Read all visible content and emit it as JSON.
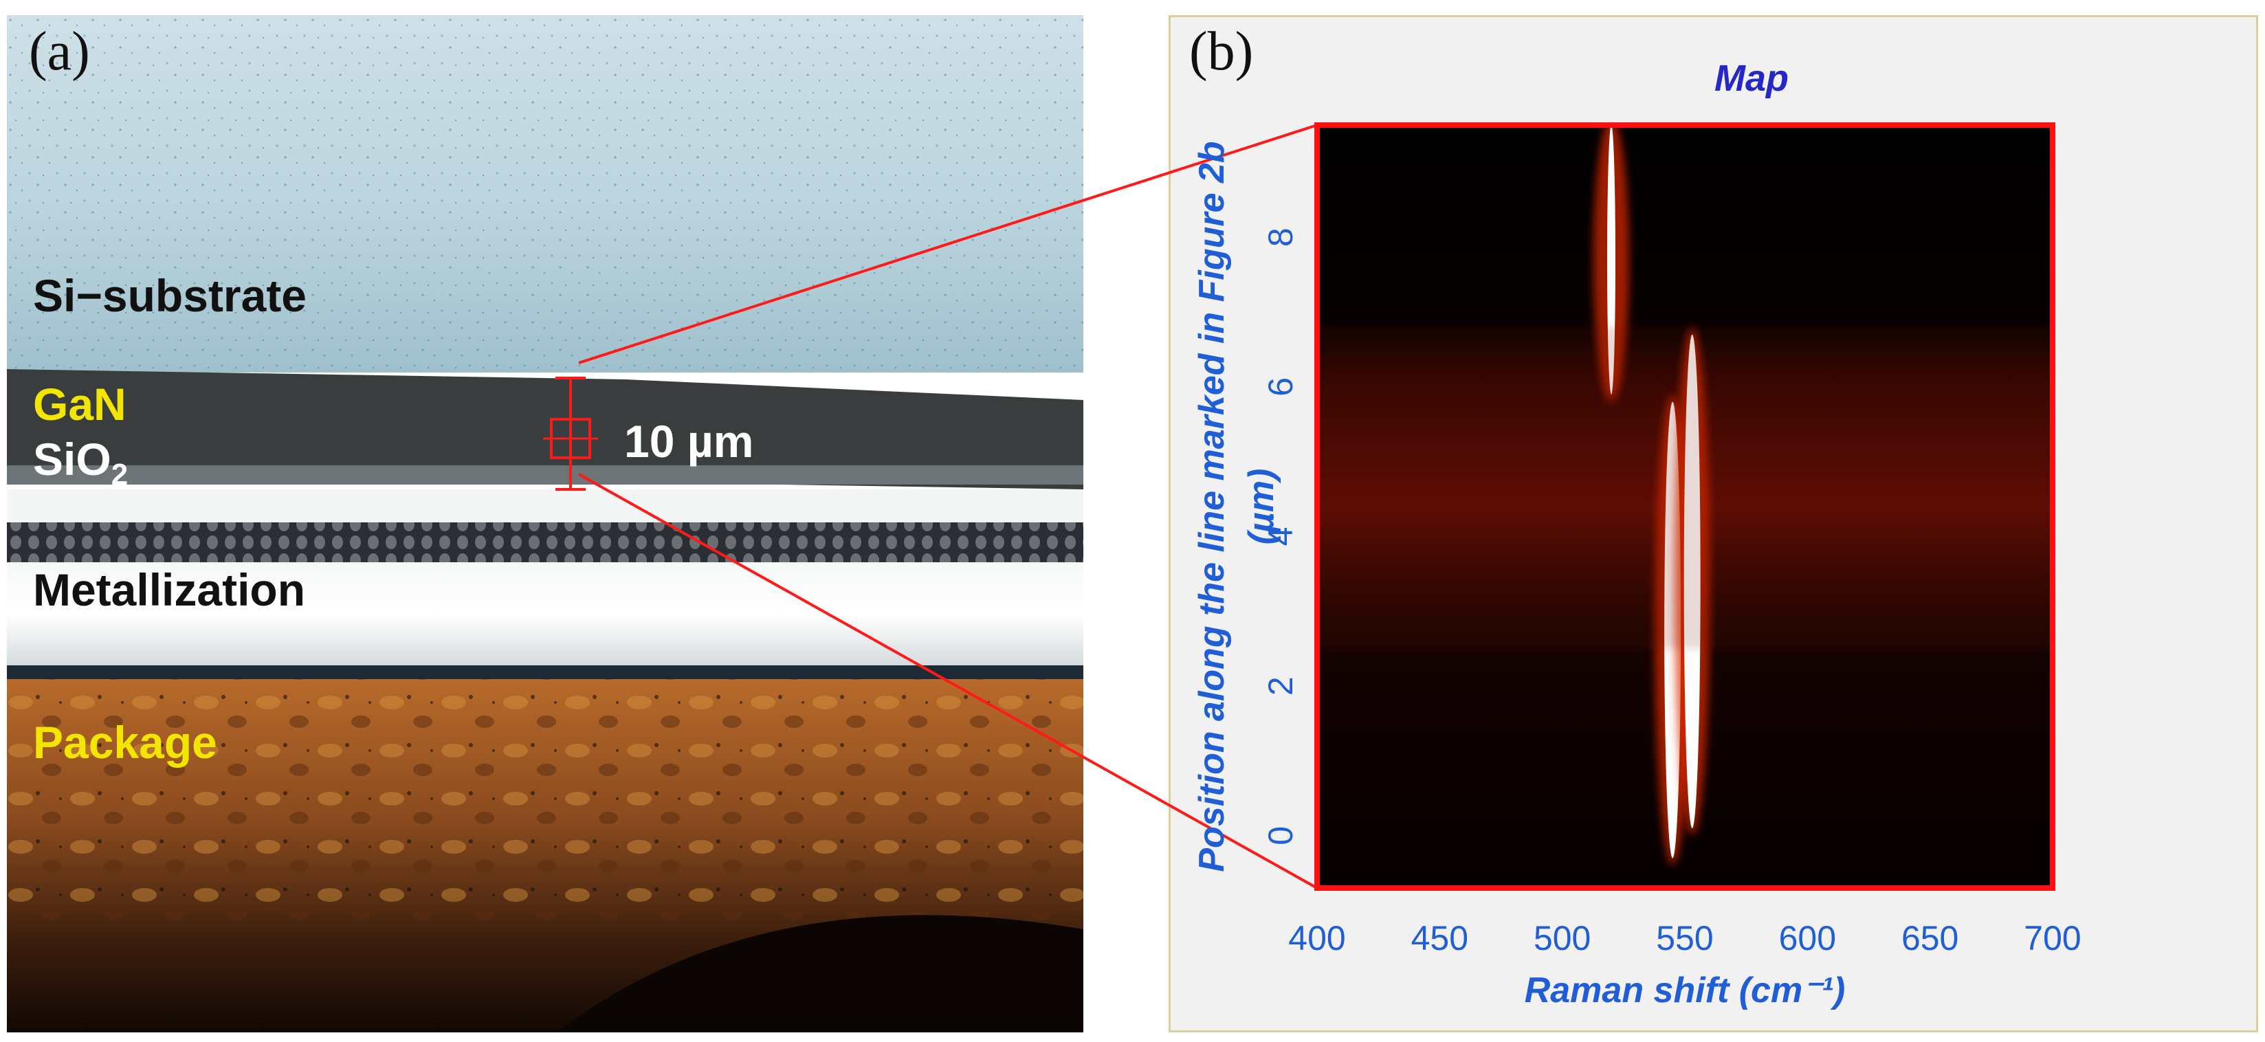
{
  "panel_a": {
    "letter": "(a)",
    "layers": {
      "si_substrate": "Si−substrate",
      "gan": "GaN",
      "sio2_base": "SiO",
      "sio2_sub": "2",
      "metallization": "Metallization",
      "package": "Package"
    },
    "scale_bar_label": "10 µm",
    "colors": {
      "gan_label": "#f2e600",
      "package_label": "#f2e600",
      "marker": "#ff1a1a"
    }
  },
  "panel_b": {
    "letter": "(b)"
  },
  "chart_data": {
    "type": "heatmap",
    "title": "Map",
    "xlabel": "Raman shift (cm⁻¹)",
    "ylabel_line1": "Position along the line marked in Figure 2b",
    "ylabel_line2": "(µm)",
    "xlim": [
      400,
      700
    ],
    "ylim": [
      -0.7,
      9.5
    ],
    "xticks": [
      400,
      450,
      500,
      550,
      600,
      650,
      700
    ],
    "yticks": [
      0,
      2,
      4,
      6,
      8
    ],
    "colormap": "black-red-yellow-white (hot)",
    "frame_color": "#ff1010",
    "features": [
      {
        "name": "Si band",
        "x": 520,
        "y_from": 5.9,
        "y_to": 9.5,
        "intensity": 1.0
      },
      {
        "name": "GaN band left",
        "x": 545,
        "y_from": -0.3,
        "y_to": 5.8,
        "intensity": 1.0
      },
      {
        "name": "GaN band right",
        "x": 553,
        "y_from": 0.1,
        "y_to": 6.7,
        "intensity": 1.0
      },
      {
        "name": "broad background",
        "x_from": 400,
        "x_to": 700,
        "y_from": 2.5,
        "y_to": 6.8,
        "intensity": 0.35
      }
    ]
  }
}
